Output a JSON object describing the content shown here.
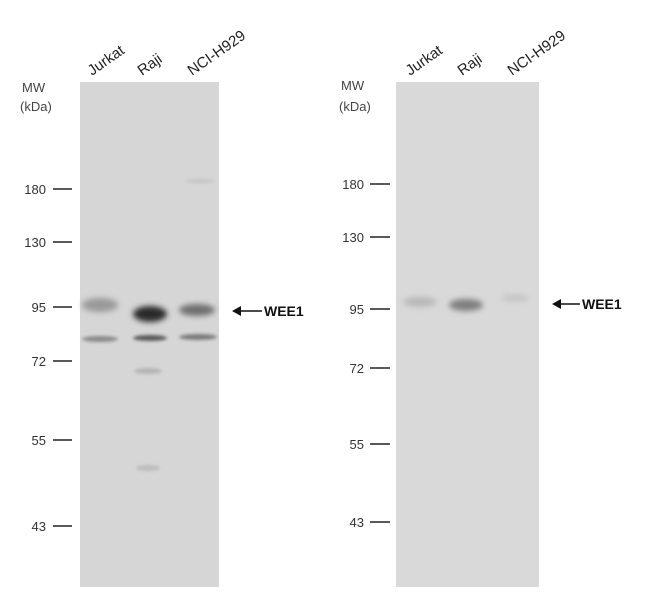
{
  "panels": [
    {
      "lanes": [
        "Jurkat",
        "Raji",
        "NCI-H929"
      ],
      "mw_label": "MW",
      "unit_label": "(kDa)",
      "markers": [
        180,
        130,
        95,
        72,
        55,
        43
      ],
      "target": "WEE1"
    },
    {
      "lanes": [
        "Jurkat",
        "Raji",
        "NCI-H929"
      ],
      "mw_label": "MW",
      "unit_label": "(kDa)",
      "markers": [
        180,
        130,
        95,
        72,
        55,
        43
      ],
      "target": "WEE1"
    }
  ]
}
